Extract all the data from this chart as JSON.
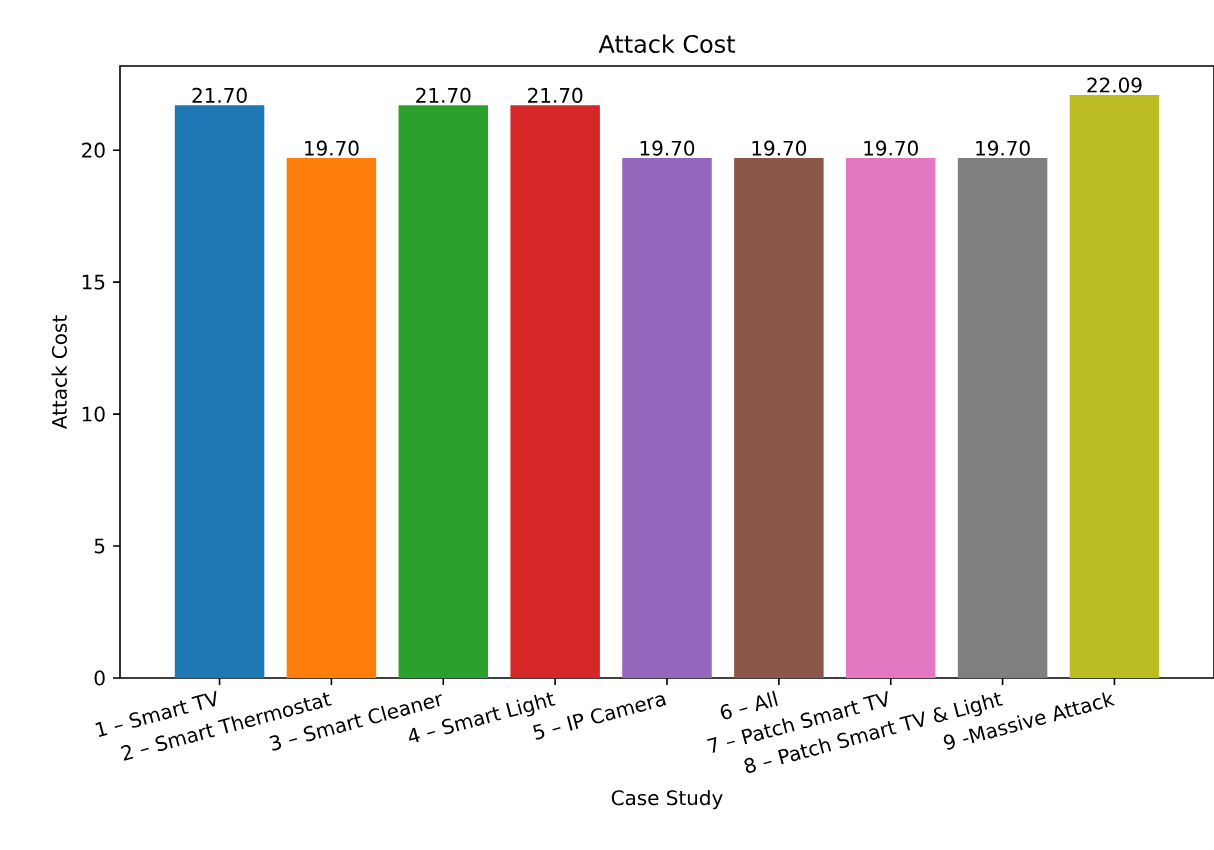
{
  "chart_data": {
    "type": "bar",
    "title": "Attack Cost",
    "xlabel": "Case Study",
    "ylabel": "Attack Cost",
    "categories": [
      "1 – Smart TV",
      "2 – Smart Thermostat",
      "3 – Smart Cleaner",
      "4 – Smart Light",
      "5 – IP Camera",
      "6 – All",
      "7 – Patch Smart TV",
      "8 – Patch Smart TV & Light",
      "9 -Massive Attack"
    ],
    "values": [
      21.7,
      19.7,
      21.7,
      21.7,
      19.7,
      19.7,
      19.7,
      19.7,
      22.09
    ],
    "value_labels": [
      "21.70",
      "19.70",
      "21.70",
      "21.70",
      "19.70",
      "19.70",
      "19.70",
      "19.70",
      "22.09"
    ],
    "colors": [
      "#1f77b4",
      "#ff7f0e",
      "#2ca02c",
      "#d62728",
      "#9467bd",
      "#8c564b",
      "#e377c2",
      "#7f7f7f",
      "#bcbd22"
    ],
    "ylim": [
      0,
      23.19
    ],
    "yticks": [
      0,
      5,
      10,
      15,
      20
    ]
  }
}
